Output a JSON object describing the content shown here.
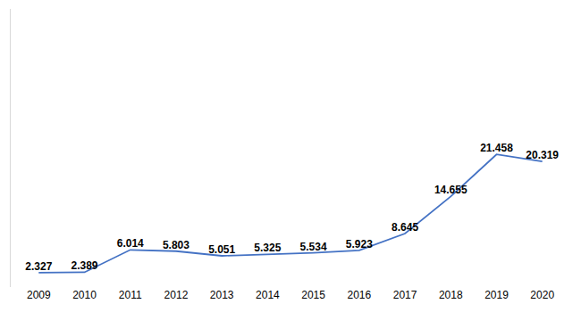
{
  "chart_data": {
    "type": "line",
    "categories": [
      "2009",
      "2010",
      "2011",
      "2012",
      "2013",
      "2014",
      "2015",
      "2016",
      "2017",
      "2018",
      "2019",
      "2020"
    ],
    "values": [
      2.327,
      2.389,
      6.014,
      5.803,
      5.051,
      5.325,
      5.534,
      5.923,
      8.645,
      14.655,
      21.458,
      20.319
    ],
    "color": "#4472c4",
    "ylim": [
      0,
      45
    ],
    "grid": false,
    "data_labels": true,
    "tick_labels": "x"
  }
}
